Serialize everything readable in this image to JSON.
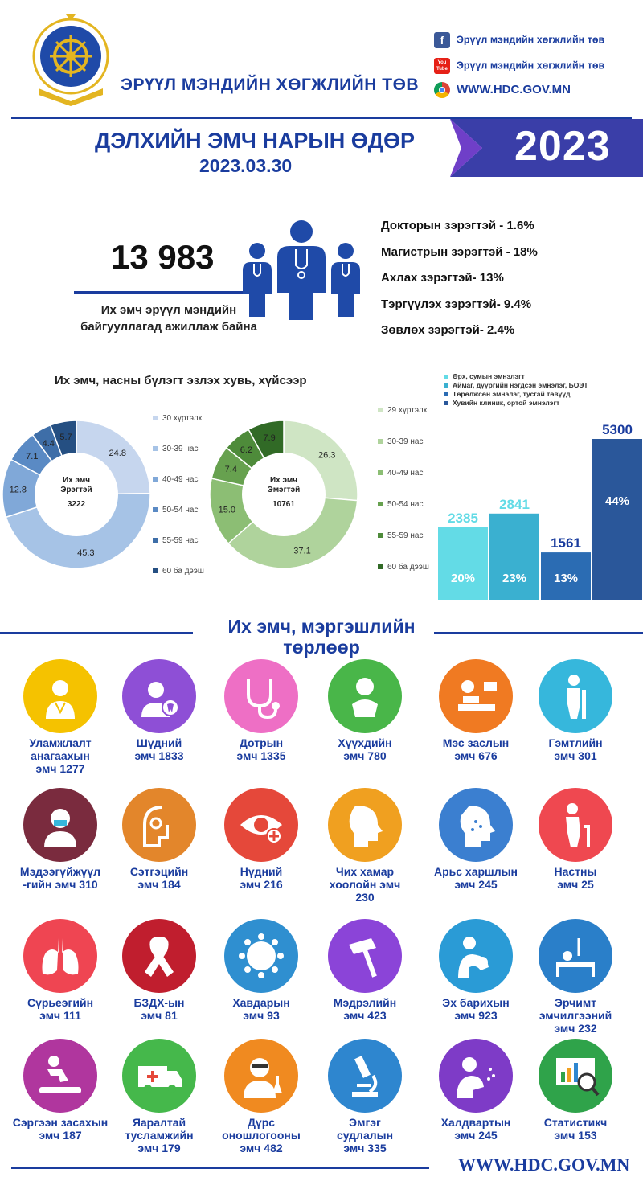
{
  "header": {
    "org_name": "ЭРҮҮЛ МЭНДИЙН ХӨГЖЛИЙН ТӨВ",
    "logo_text": "ЭРҮҮЛ МЭНДИЙН ХӨГЖЛИЙН ТӨВ",
    "facebook": "Эрүүл мэндийн хөгжлийн төв",
    "youtube": "Эрүүл мэндийн хөгжлийн төв",
    "youtube_icon_text": "You Tube",
    "website": "WWW.HDC.GOV.MN"
  },
  "title": {
    "name": "ДЭЛХИЙН ЭМЧ НАРЫН ӨДӨР",
    "date": "2023.03.30",
    "year": "2023"
  },
  "summary": {
    "total": "13 983",
    "caption_1": "Их эмч эрүүл мэндийн",
    "caption_2": "байгууллагад ажиллаж байна",
    "degrees": [
      "Докторын зэрэгтэй - 1.6%",
      "Магистрын зэрэгтэй - 18%",
      "Ахлах зэрэгтэй- 13%",
      "Тэргүүлэх зэрэгтэй- 9.4%",
      "Зөвлөх зэрэгтэй- 2.4%"
    ]
  },
  "colors": {
    "brand": "#1a3c9e",
    "male_series": [
      "#c6d6ee",
      "#a6c3e6",
      "#80a8d8",
      "#5a8ac4",
      "#3e6ea8",
      "#254f82"
    ],
    "female_series": [
      "#cfe5c4",
      "#afd39c",
      "#8cbe74",
      "#67a14f",
      "#4e8b3a",
      "#316a26"
    ],
    "bars": [
      "#63dbe6",
      "#3ab0d0",
      "#2b6cb3",
      "#2a579a"
    ]
  },
  "chart_data": [
    {
      "type": "pie",
      "title": "Их эмч, насны бүлэгт эзлэх хувь, хүйсээр",
      "center_label_1": "Их эмч",
      "center_label_2": "Эрэгтэй",
      "center_value": "3222",
      "categories": [
        "30 хүртэлх",
        "30-39 нас",
        "40-49 нас",
        "50-54 нас",
        "55-59 нас",
        "60 ба дээш"
      ],
      "values": [
        24.8,
        45.3,
        12.8,
        7.1,
        4.4,
        5.7
      ],
      "value_labels": [
        "24.8",
        "45.3",
        "12.8",
        "7.1",
        "4.4",
        "5.7"
      ],
      "legend": "right"
    },
    {
      "type": "pie",
      "center_label_1": "Их эмч",
      "center_label_2": "Эмэгтэй",
      "center_value": "10761",
      "categories": [
        "29 хүртэлх",
        "30-39 нас",
        "40-49 нас",
        "50-54 нас",
        "55-59 нас",
        "60 ба дээш"
      ],
      "values": [
        26.3,
        37.1,
        15.0,
        7.4,
        6.2,
        7.9
      ],
      "value_labels": [
        "26.3",
        "37.1",
        "15.0",
        "7.4",
        "6.2",
        "7.9"
      ],
      "legend": "right"
    },
    {
      "type": "bar",
      "categories": [
        "Өрх, сумын эмнэлэгт",
        "Аймаг, дүүргийн нэгдсэн эмнэлэг, БОЭТ",
        "Төрөлжсөн эмнэлэг, тусгай төвүүд",
        "Хувийн клиник, ортой эмнэлэгт"
      ],
      "values": [
        2385,
        2841,
        1561,
        5300
      ],
      "value_labels": [
        "2385",
        "2841",
        "1561",
        "5300"
      ],
      "percent_labels": [
        "20%",
        "23%",
        "13%",
        "44%"
      ],
      "ylim": [
        0,
        5300
      ],
      "legend": "top"
    }
  ],
  "specialties": {
    "title_1": "Их эмч, мэргэшлийн",
    "title_2": "төрлөөр",
    "items": [
      {
        "label": "Уламжлалт\nанагаахын\nэмч 1277",
        "icon": "traditional-doctor-icon",
        "color": "#f5c200"
      },
      {
        "label": "Шүдний\nэмч 1833",
        "icon": "dentist-icon",
        "color": "#8e4fd6"
      },
      {
        "label": "Дотрын\nэмч 1335",
        "icon": "stethoscope-icon",
        "color": "#ee6fc5"
      },
      {
        "label": "Хүүхдийн\nэмч 780",
        "icon": "baby-icon",
        "color": "#49b649"
      },
      {
        "label": "Мэс заслын\nэмч 676",
        "icon": "surgery-icon",
        "color": "#f07a22"
      },
      {
        "label": "Гэмтлийн\nэмч 301",
        "icon": "injury-icon",
        "color": "#36b7dc"
      },
      {
        "label": "Мэдээгүйжүүл\n-гийн эмч 310",
        "icon": "anesthesia-icon",
        "color": "#7a2b3e"
      },
      {
        "label": "Сэтгэцийн\nэмч 184",
        "icon": "mental-health-icon",
        "color": "#e3862b"
      },
      {
        "label": "Нүдний\nэмч 216",
        "icon": "eye-icon",
        "color": "#e5483a"
      },
      {
        "label": "Чих хамар\nхоолойн эмч\n230",
        "icon": "ent-icon",
        "color": "#f0a020"
      },
      {
        "label": "Арьс харшлын\nэмч 245",
        "icon": "skin-icon",
        "color": "#3b7fd0"
      },
      {
        "label": "Настны\nэмч 25",
        "icon": "elderly-icon",
        "color": "#ef4850"
      },
      {
        "label": "Сүрьеэгийн\nэмч 111",
        "icon": "lungs-icon",
        "color": "#ef4552"
      },
      {
        "label": "БЗДХ-ын\nэмч 81",
        "icon": "ribbon-icon",
        "color": "#c01e2e"
      },
      {
        "label": "Хавдарын\nэмч 93",
        "icon": "cancer-cell-icon",
        "color": "#2f8fd0"
      },
      {
        "label": "Мэдрэлийн\nэмч 423",
        "icon": "reflex-hammer-icon",
        "color": "#8b44d8"
      },
      {
        "label": "Эх барихын\nэмч 923",
        "icon": "mother-baby-icon",
        "color": "#2a9bd6"
      },
      {
        "label": "Эрчимт\nэмчилгээний\nэмч 232",
        "icon": "intensive-care-icon",
        "color": "#2a7fc9"
      },
      {
        "label": "Сэргээн засахын\nэмч 187",
        "icon": "rehabilitation-icon",
        "color": "#b0369e"
      },
      {
        "label": "Яаралтай\nтусламжийн\nэмч 179",
        "icon": "ambulance-icon",
        "color": "#45b84b"
      },
      {
        "label": "Дүрс\noношлогооны\nэмч 482",
        "icon": "radiology-icon",
        "color": "#f08a20"
      },
      {
        "label": "Эмгэг\nсудлалын\nэмч 335",
        "icon": "microscope-icon",
        "color": "#2e86cf"
      },
      {
        "label": "Халдвартын\nэмч 245",
        "icon": "infection-icon",
        "color": "#7e3bc7"
      },
      {
        "label": "Статистикч\nэмч 153",
        "icon": "statistics-icon",
        "color": "#2fa34a"
      }
    ]
  },
  "footer": {
    "website": "WWW.HDC.GOV.MN"
  }
}
